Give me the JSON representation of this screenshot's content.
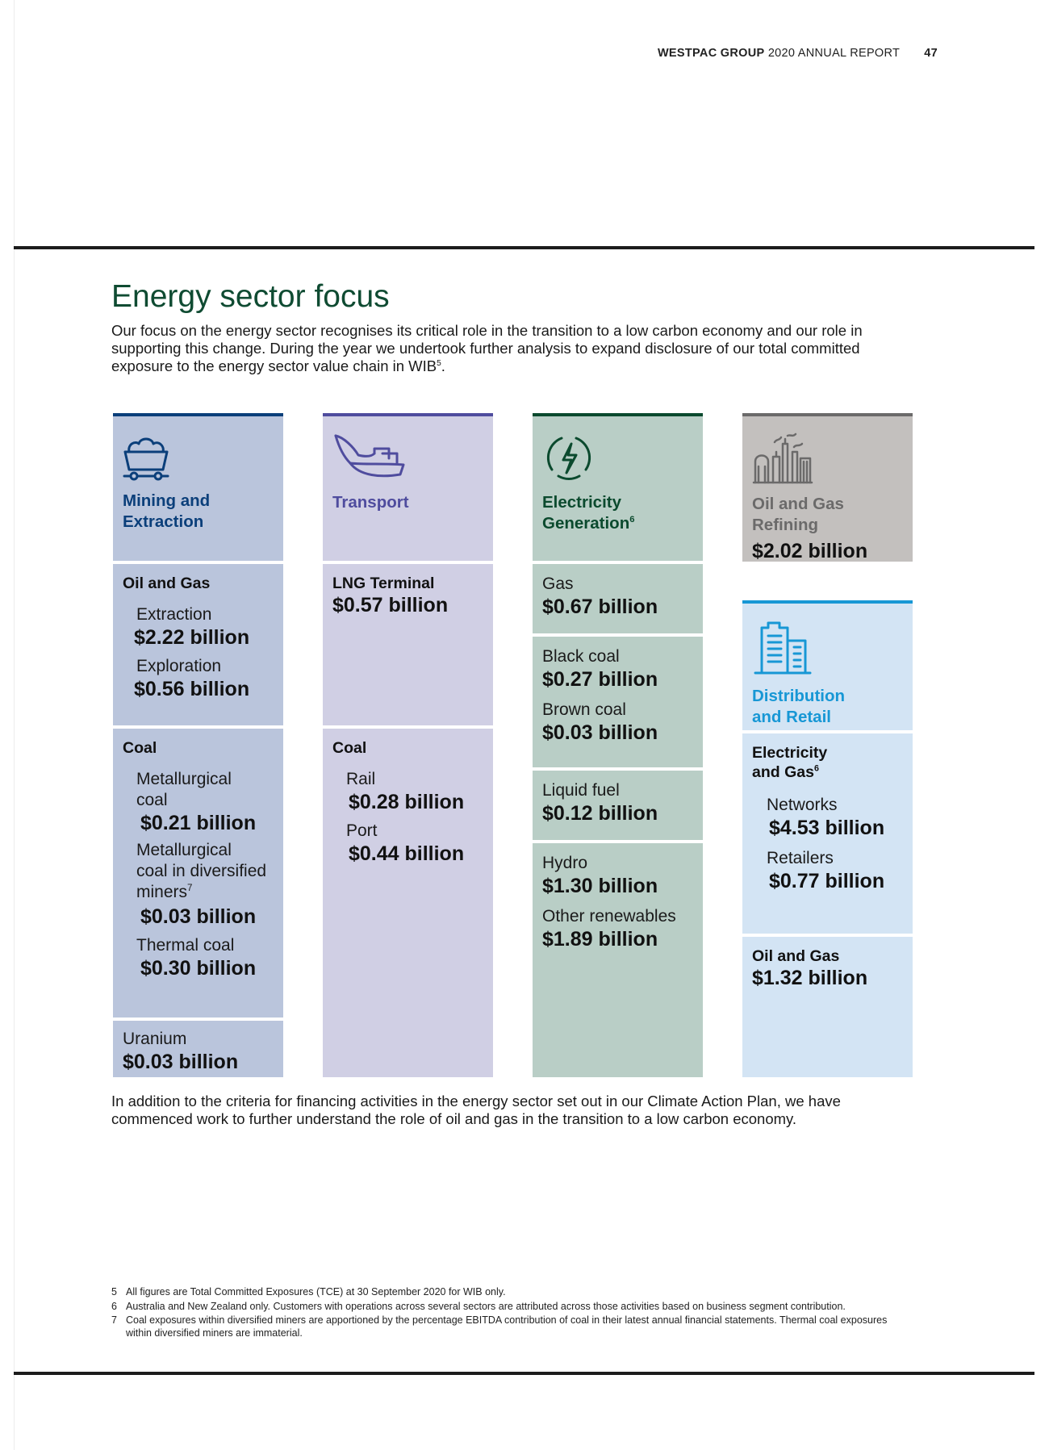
{
  "header": {
    "brand": "WESTPAC GROUP",
    "report": "2020 ANNUAL REPORT",
    "page_number": "47"
  },
  "title": "Energy sector focus",
  "intro": {
    "text": "Our focus on the energy sector recognises its critical role in the transition to a low carbon economy and our role in supporting this change. During the year we undertook further analysis to expand disclosure of our total committed exposure to the energy sector value chain in WIB",
    "footnote_ref": "5",
    "end": "."
  },
  "columns": {
    "mining": {
      "color": "#0b3f7a",
      "bg": "#bac5dc",
      "icon": "mine-cart-icon",
      "title_line1": "Mining and",
      "title_line2": "Extraction",
      "oil_gas": {
        "heading": "Oil and Gas",
        "extraction_label": "Extraction",
        "extraction_value": "$2.22 billion",
        "exploration_label": "Exploration",
        "exploration_value": "$0.56 billion"
      },
      "coal": {
        "heading": "Coal",
        "met_line1": "Metallurgical",
        "met_line2": "coal",
        "met_value": "$0.21 billion",
        "div_line1": "Metallurgical",
        "div_line2": "coal in diversified",
        "div_line3": "miners",
        "div_ref": "7",
        "div_value": "$0.03 billion",
        "thermal_label": "Thermal coal",
        "thermal_value": "$0.30 billion"
      },
      "uranium": {
        "label": "Uranium",
        "value": "$0.03 billion"
      }
    },
    "transport": {
      "color": "#4f4c9e",
      "bg": "#d0cfe4",
      "icon": "ship-icon",
      "title": "Transport",
      "lng": {
        "heading": "LNG Terminal",
        "value": "$0.57 billion"
      },
      "coal": {
        "heading": "Coal",
        "rail_label": "Rail",
        "rail_value": "$0.28 billion",
        "port_label": "Port",
        "port_value": "$0.44 billion"
      }
    },
    "electricity": {
      "color": "#0b4a2e",
      "bg": "#b9cec6",
      "icon": "lightning-bolt-icon",
      "title_line1": "Electricity",
      "title_line2": "Generation",
      "title_ref": "6",
      "gas": {
        "label": "Gas",
        "value": "$0.67 billion"
      },
      "black_coal": {
        "label": "Black coal",
        "value": "$0.27 billion"
      },
      "brown_coal": {
        "label": "Brown coal",
        "value": "$0.03 billion"
      },
      "liquid_fuel": {
        "label": "Liquid fuel",
        "value": "$0.12 billion"
      },
      "hydro": {
        "label": "Hydro",
        "value": "$1.30 billion"
      },
      "other_renewables": {
        "label": "Other renewables",
        "value": "$1.89 billion"
      }
    },
    "refining": {
      "color": "#6b6a6a",
      "bg": "#c3c0be",
      "icon": "refinery-icon",
      "title_line1": "Oil and Gas",
      "title_line2": "Refining",
      "value": "$2.02 billion"
    },
    "distribution": {
      "color": "#1797d5",
      "bg": "#d3e4f4",
      "icon": "office-building-icon",
      "title_line1": "Distribution",
      "title_line2": "and Retail",
      "elec_gas": {
        "heading_line1": "Electricity",
        "heading_line2": "and Gas",
        "heading_ref": "6",
        "networks_label": "Networks",
        "networks_value": "$4.53 billion",
        "retailers_label": "Retailers",
        "retailers_value": "$0.77 billion"
      },
      "oil_gas": {
        "heading": "Oil and Gas",
        "value": "$1.32 billion"
      }
    }
  },
  "closing": "In addition to the criteria for financing activities in the energy sector set out in our Climate Action Plan, we have commenced work to further understand the role of oil and gas in the transition to a low carbon economy.",
  "footnotes": [
    {
      "num": "5",
      "text": "All figures are Total Committed Exposures (TCE) at 30 September 2020 for WIB only."
    },
    {
      "num": "6",
      "text": "Australia and New Zealand only. Customers with operations across several sectors are attributed across those activities based on business segment contribution."
    },
    {
      "num": "7",
      "text": "Coal exposures within diversified miners are apportioned by the percentage EBITDA contribution of coal in their latest annual financial statements. Thermal coal exposures within diversified miners are immaterial."
    }
  ]
}
